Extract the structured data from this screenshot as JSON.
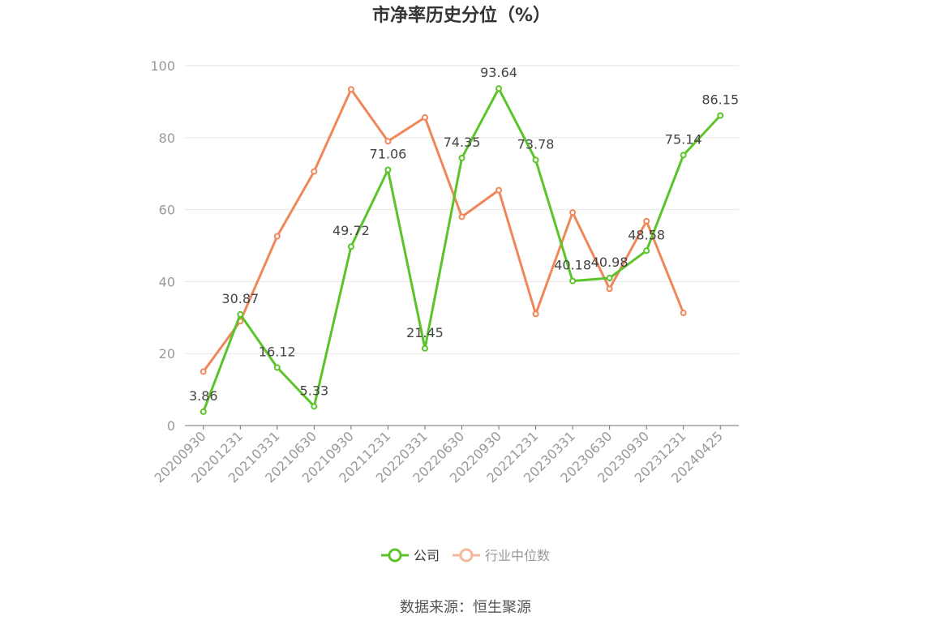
{
  "chart_data": {
    "type": "line",
    "title": "市净率历史分位（%）",
    "xlabel": "",
    "ylabel": "",
    "ylim": [
      0,
      100
    ],
    "yticks": [
      0,
      20,
      40,
      60,
      80,
      100
    ],
    "grid": true,
    "legend_position": "bottom",
    "categories": [
      "20200930",
      "20201231",
      "20210331",
      "20210630",
      "20210930",
      "20211231",
      "20220331",
      "20220630",
      "20220930",
      "20221231",
      "20230331",
      "20230630",
      "20230930",
      "20231231",
      "20240425"
    ],
    "series": [
      {
        "name": "公司",
        "color": "#5bc42a",
        "values": [
          3.86,
          30.87,
          16.12,
          5.33,
          49.72,
          71.06,
          21.45,
          74.35,
          93.64,
          73.78,
          40.18,
          40.98,
          48.58,
          75.14,
          86.15
        ],
        "value_labels": [
          "3.86",
          "30.87",
          "16.12",
          "5.33",
          "49.72",
          "71.06",
          "21.45",
          "74.35",
          "93.64",
          "73.78",
          "40.18",
          "40.98",
          "48.58",
          "75.14",
          "86.15"
        ],
        "show_labels": true
      },
      {
        "name": "行业中位数",
        "color": "#f0875a",
        "legend_color": "#f5b89c",
        "values": [
          15.0,
          29.0,
          52.6,
          70.6,
          93.4,
          79.0,
          85.6,
          58.0,
          65.4,
          31.0,
          59.2,
          38.0,
          56.8,
          31.3,
          null
        ],
        "show_labels": false
      }
    ]
  },
  "footer": {
    "source": "数据来源：恒生聚源"
  }
}
